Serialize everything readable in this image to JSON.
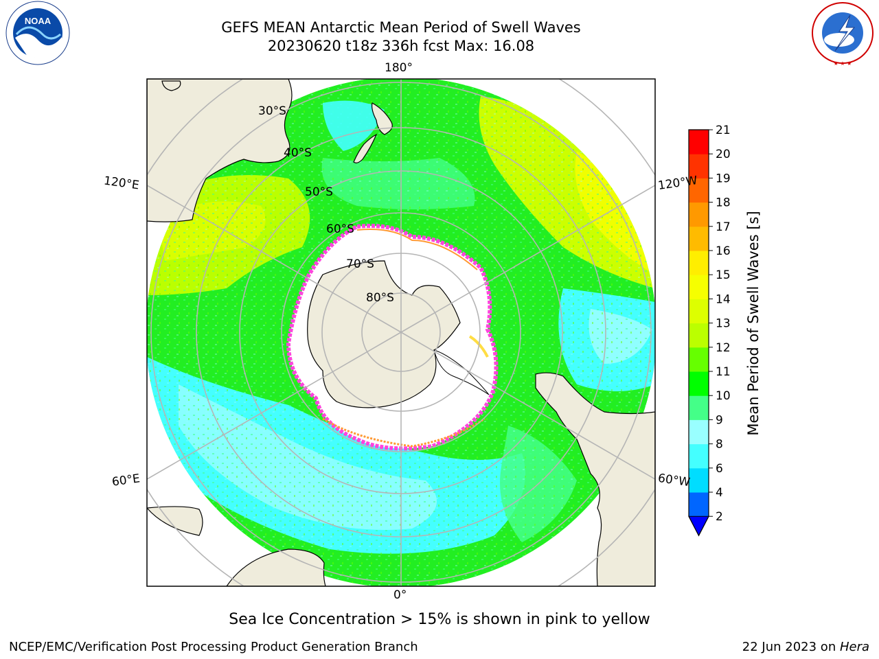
{
  "title": {
    "line1": "GEFS MEAN Antarctic Mean Period of Swell Waves",
    "line2": "20230620 t18z 336h fcst   Max: 16.08"
  },
  "logos": {
    "left": {
      "name": "noaa-logo",
      "text": "NOAA",
      "ring_text": "NATIONAL OCEANIC AND ATMOSPHERIC ADMINISTRATION · U.S. DEPARTMENT OF COMMERCE"
    },
    "right": {
      "name": "nws-logo",
      "ring_text": "NATIONAL WEATHER SERVICE"
    }
  },
  "map": {
    "projection": "south-polar-stereographic",
    "longitude_labels": [
      "180°",
      "120°E",
      "120°W",
      "60°E",
      "60°W",
      "0°"
    ],
    "latitude_labels": [
      "30°S",
      "40°S",
      "50°S",
      "60°S",
      "70°S",
      "80°S"
    ],
    "colors": {
      "land": "#efecdc",
      "ice_shelf": "#ffffff",
      "sea_ice_edge": [
        "#ff44dd",
        "#ff9933",
        "#ffdd44"
      ],
      "gridline": "#b5b5b5"
    }
  },
  "colorbar": {
    "label": "Mean Period of Swell Waves [s]",
    "ticks": [
      "21",
      "20",
      "19",
      "18",
      "17",
      "16",
      "15",
      "14",
      "13",
      "12",
      "11",
      "10",
      "9",
      "8",
      "6",
      "4",
      "2"
    ],
    "levels": [
      2,
      4,
      6,
      8,
      9,
      10,
      11,
      12,
      13,
      14,
      15,
      16,
      17,
      18,
      19,
      20,
      21
    ],
    "colors": [
      "#0066ff",
      "#00ddff",
      "#44ffff",
      "#99ffff",
      "#44ff88",
      "#00ff00",
      "#66ff00",
      "#bbff00",
      "#ddff00",
      "#f6ff00",
      "#ffee00",
      "#ffbb00",
      "#ff9900",
      "#ff6600",
      "#ff3300",
      "#ff0000"
    ],
    "extend_below_color": "#0000ff"
  },
  "note": "Sea Ice Concentration > 15% is shown in pink to yellow",
  "footer": {
    "left": "NCEP/EMC/Verification Post Processing Product Generation Branch",
    "right_prefix": "22 Jun 2023 on ",
    "right_machine": "Hera"
  }
}
